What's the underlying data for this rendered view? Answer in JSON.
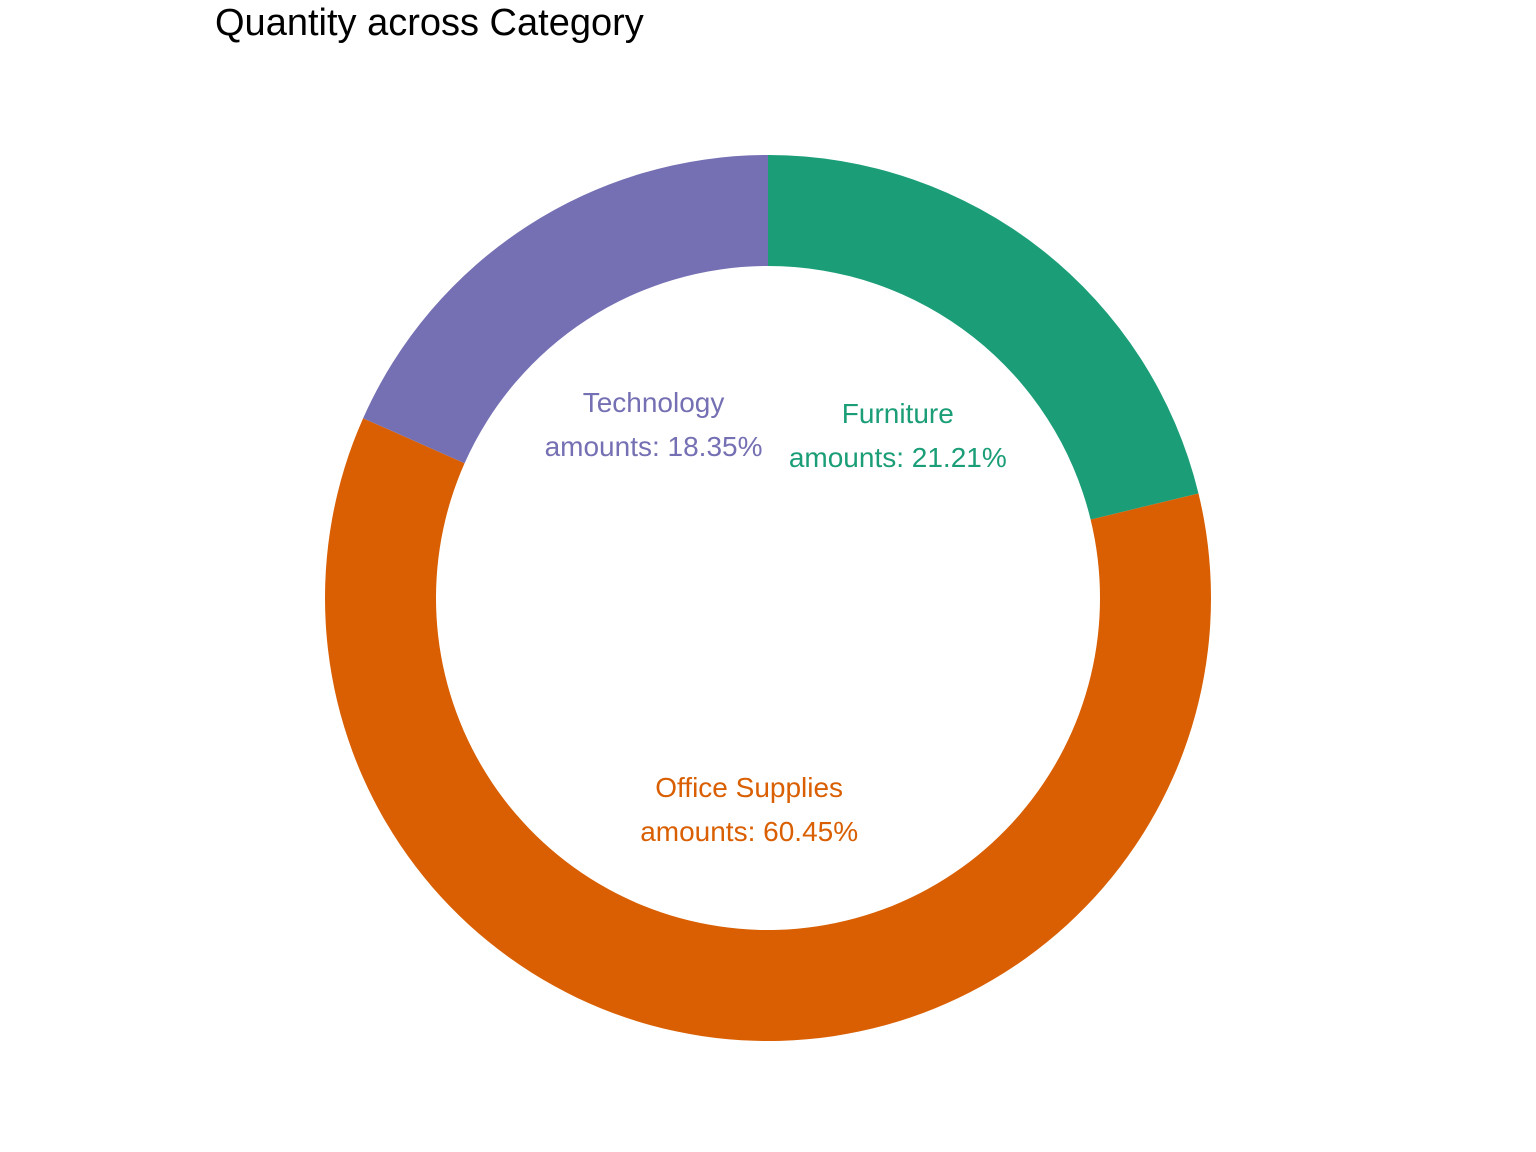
{
  "chart_data": {
    "type": "pie",
    "title": "Quantity across Category",
    "categories": [
      "Furniture",
      "Office Supplies",
      "Technology"
    ],
    "values": [
      21.21,
      60.45,
      18.35
    ],
    "unit": "%",
    "label_prefix": "amounts: ",
    "colors": [
      "#1b9e77",
      "#d95f02",
      "#7570b3"
    ],
    "donut": true,
    "legend": "none",
    "grid": false
  }
}
